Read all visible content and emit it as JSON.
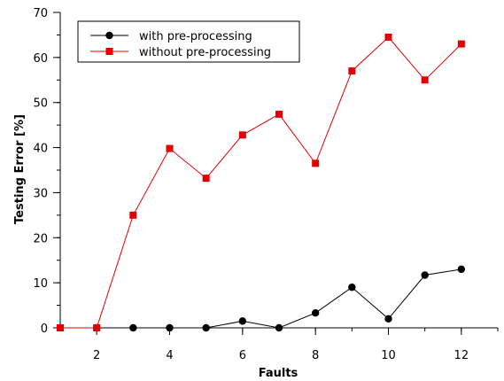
{
  "chart_data": {
    "type": "line",
    "title": "",
    "xlabel": "Faults",
    "ylabel": "Testing Error [%]",
    "xlim": [
      1,
      13
    ],
    "ylim": [
      0,
      70
    ],
    "x_ticks": [
      2,
      4,
      6,
      8,
      10,
      12
    ],
    "y_ticks": [
      0,
      10,
      20,
      30,
      40,
      50,
      60,
      70
    ],
    "x_minor_step": 1,
    "y_minor_step": 5,
    "grid": false,
    "legend_position": "top-left",
    "x": [
      1,
      2,
      3,
      4,
      5,
      6,
      7,
      8,
      9,
      10,
      11,
      12
    ],
    "series": [
      {
        "name": "with pre-processing",
        "color": "#000000",
        "marker": "circle",
        "values": [
          0,
          0,
          0,
          0,
          0,
          1.5,
          0,
          3.3,
          9.0,
          2.0,
          11.7,
          13.0
        ]
      },
      {
        "name": "without pre-processing",
        "color": "#e00000",
        "marker": "square",
        "values": [
          0,
          0,
          25.0,
          39.8,
          33.2,
          42.8,
          47.4,
          36.5,
          57.0,
          64.5,
          55.0,
          63.0
        ]
      }
    ]
  }
}
